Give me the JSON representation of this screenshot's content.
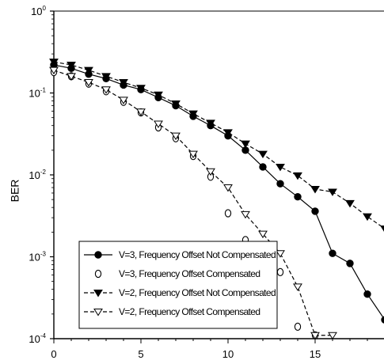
{
  "chart_data": {
    "type": "line",
    "xlabel": "",
    "ylabel": "BER",
    "x_ticks": [
      "0",
      "5",
      "10",
      "15"
    ],
    "y_ticks": [
      {
        "base": "10",
        "exp": "0"
      },
      {
        "base": "10",
        "exp": "-1"
      },
      {
        "base": "10",
        "exp": "-2"
      },
      {
        "base": "10",
        "exp": "-3"
      },
      {
        "base": "10",
        "exp": "-4"
      }
    ],
    "xlim": [
      0,
      19
    ],
    "ylim": [
      0.0001,
      1
    ],
    "yscale": "log",
    "grid": false,
    "legend_position": "bottom-left",
    "series": [
      {
        "name": "V=3, Frequency Offset Not Compensated",
        "marker": "filled-circle",
        "line": "solid",
        "x": [
          0,
          1,
          2,
          3,
          4,
          5,
          6,
          7,
          8,
          9,
          10,
          11,
          12,
          13,
          14,
          15,
          16,
          17,
          18,
          19
        ],
        "y": [
          0.22,
          0.2,
          0.17,
          0.15,
          0.125,
          0.11,
          0.088,
          0.07,
          0.052,
          0.04,
          0.03,
          0.02,
          0.0125,
          0.0078,
          0.0054,
          0.0036,
          0.0011,
          0.00083,
          0.00035,
          0.00017
        ]
      },
      {
        "name": "V=3, Frequency Offset Compensated",
        "marker": "open-circle",
        "line": "none",
        "x": [
          0,
          1,
          2,
          3,
          4,
          5,
          6,
          7,
          8,
          9,
          10,
          11,
          12,
          13,
          14,
          15
        ],
        "y": [
          0.18,
          0.16,
          0.13,
          0.105,
          0.078,
          0.058,
          0.038,
          0.028,
          0.017,
          0.0095,
          0.0034,
          0.0016,
          0.0012,
          0.00065,
          0.00014,
          0.00011
        ]
      },
      {
        "name": "V=2, Frequency Offset Not Compensated",
        "marker": "filled-triangle-down",
        "line": "dashed",
        "x": [
          0,
          1,
          2,
          3,
          4,
          5,
          6,
          7,
          8,
          9,
          10,
          11,
          12,
          13,
          14,
          15,
          16,
          17,
          18,
          19
        ],
        "y": [
          0.24,
          0.22,
          0.19,
          0.16,
          0.135,
          0.115,
          0.095,
          0.074,
          0.056,
          0.043,
          0.033,
          0.024,
          0.018,
          0.0125,
          0.0098,
          0.0067,
          0.0062,
          0.0045,
          0.0031,
          0.0022
        ]
      },
      {
        "name": "V=2, Frequency Offset Compensated",
        "marker": "open-triangle-down",
        "line": "dashed",
        "x": [
          0,
          1,
          2,
          3,
          4,
          5,
          6,
          7,
          8,
          9,
          10,
          11,
          12,
          13,
          14,
          15,
          16
        ],
        "y": [
          0.19,
          0.16,
          0.135,
          0.11,
          0.082,
          0.059,
          0.042,
          0.03,
          0.018,
          0.011,
          0.007,
          0.0033,
          0.0019,
          0.0011,
          0.00043,
          0.00011,
          0.00011
        ]
      }
    ]
  }
}
